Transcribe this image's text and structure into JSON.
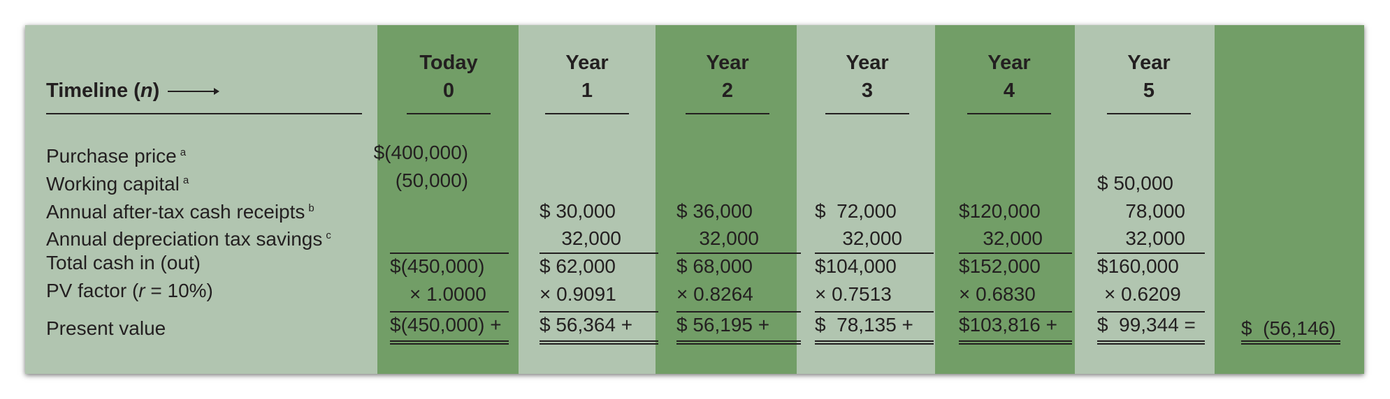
{
  "header": {
    "timeline_label": "Timeline (",
    "timeline_var": "n",
    "timeline_close": ")",
    "columns": [
      {
        "top": "Today",
        "bottom": "0"
      },
      {
        "top": "Year",
        "bottom": "1"
      },
      {
        "top": "Year",
        "bottom": "2"
      },
      {
        "top": "Year",
        "bottom": "3"
      },
      {
        "top": "Year",
        "bottom": "4"
      },
      {
        "top": "Year",
        "bottom": "5"
      }
    ]
  },
  "rows": [
    {
      "label": "Purchase price",
      "note": "a"
    },
    {
      "label": "Working capital",
      "note": "a"
    },
    {
      "label": "Annual after-tax cash receipts",
      "note": "b"
    },
    {
      "label": "Annual depreciation tax savings",
      "note": "c"
    },
    {
      "label": "Total cash in (out)",
      "note": ""
    },
    {
      "label": "PV factor (",
      "var": "r",
      "rest": " = 10%)"
    },
    {
      "label": "Present value",
      "note": ""
    }
  ],
  "cells": {
    "purchase_price": [
      "$(400,000)",
      "",
      "",
      "",
      "",
      ""
    ],
    "working_capital": [
      "(50,000)",
      "",
      "",
      "",
      "",
      "$ 50,000"
    ],
    "cash_receipts": [
      "",
      "$ 30,000",
      "$ 36,000",
      "$  72,000",
      "$120,000",
      "78,000"
    ],
    "depreciation": [
      "",
      "32,000",
      "32,000",
      "32,000",
      "32,000",
      "32,000"
    ],
    "total_cash": [
      "$(450,000)",
      "$ 62,000",
      "$ 68,000",
      "$104,000",
      "$152,000",
      "$160,000"
    ],
    "pv_factor": [
      "× 1.0000",
      "× 0.9091",
      "× 0.8264",
      "× 0.7513",
      "× 0.6830",
      "× 0.6209"
    ],
    "present_value": [
      "$(450,000) +",
      "$ 56,364 +",
      "$ 56,195 +",
      "$  78,135 +",
      "$103,816 +",
      "$  99,344 ="
    ]
  },
  "npv": "$  (56,146)",
  "colors": {
    "dark": "#729e67",
    "light": "#b1c5b0"
  }
}
